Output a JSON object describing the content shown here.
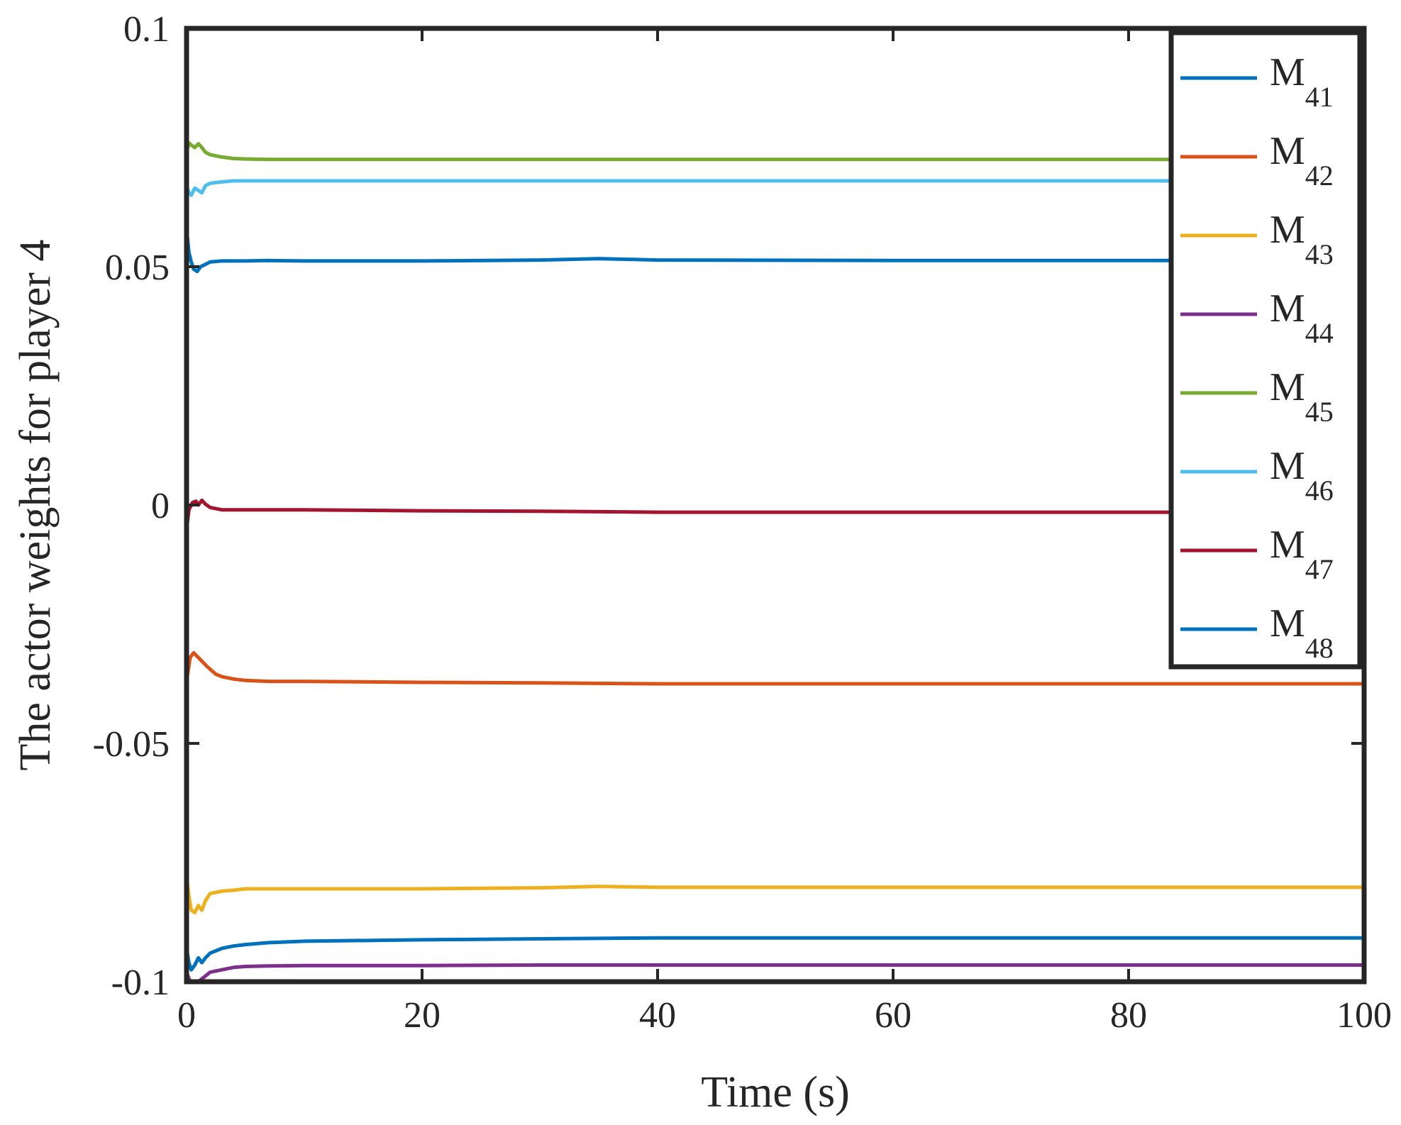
{
  "chart_data": {
    "type": "line",
    "title": "",
    "xlabel": "Time (s)",
    "ylabel": "The actor weights for player 4",
    "xlim": [
      0,
      100
    ],
    "ylim": [
      -0.1,
      0.1
    ],
    "xticks": [
      0,
      20,
      40,
      60,
      80,
      100
    ],
    "xtick_labels": [
      "0",
      "20",
      "40",
      "60",
      "80",
      "100"
    ],
    "yticks": [
      -0.1,
      -0.05,
      0,
      0.05,
      0.1
    ],
    "ytick_labels": [
      "-0.1",
      "-0.05",
      "0",
      "0.05",
      "0.1"
    ],
    "grid": false,
    "legend_position": "top-right",
    "series": [
      {
        "name": "M41",
        "base": "M",
        "sub": "41",
        "color": "#0072BD",
        "x": [
          0,
          0.2,
          0.4,
          0.6,
          0.9,
          1.2,
          1.6,
          2,
          3,
          4,
          5,
          7,
          10,
          20,
          30,
          35,
          40,
          60,
          80,
          100
        ],
        "values": [
          0.058,
          0.053,
          0.051,
          0.0495,
          0.049,
          0.05,
          0.0505,
          0.051,
          0.0512,
          0.0512,
          0.0512,
          0.0513,
          0.0512,
          0.0512,
          0.0514,
          0.0517,
          0.0514,
          0.0513,
          0.0513,
          0.0513
        ]
      },
      {
        "name": "M42",
        "base": "M",
        "sub": "42",
        "color": "#D95319",
        "x": [
          0,
          0.3,
          0.6,
          1,
          1.4,
          1.8,
          2.5,
          3,
          4,
          5,
          7,
          10,
          20,
          30,
          40,
          60,
          80,
          100
        ],
        "values": [
          -0.037,
          -0.032,
          -0.031,
          -0.032,
          -0.033,
          -0.034,
          -0.0355,
          -0.036,
          -0.0365,
          -0.0368,
          -0.037,
          -0.037,
          -0.0372,
          -0.0373,
          -0.0375,
          -0.0375,
          -0.0375,
          -0.0375
        ]
      },
      {
        "name": "M43",
        "base": "M",
        "sub": "43",
        "color": "#EDB120",
        "x": [
          0,
          0.2,
          0.4,
          0.7,
          1,
          1.3,
          1.6,
          2,
          3,
          4,
          5,
          7,
          10,
          20,
          30,
          35,
          40,
          60,
          80,
          100
        ],
        "values": [
          -0.078,
          -0.082,
          -0.085,
          -0.0855,
          -0.084,
          -0.085,
          -0.083,
          -0.0815,
          -0.081,
          -0.0808,
          -0.0805,
          -0.0805,
          -0.0805,
          -0.0805,
          -0.0803,
          -0.08,
          -0.0802,
          -0.0802,
          -0.0802,
          -0.0802
        ]
      },
      {
        "name": "M44",
        "base": "M",
        "sub": "44",
        "color": "#7E2F8E",
        "x": [
          0,
          0.3,
          0.6,
          1,
          1.5,
          2,
          3,
          4,
          5,
          7,
          10,
          20,
          30,
          40,
          60,
          80,
          100
        ],
        "values": [
          -0.098,
          -0.1,
          -0.1,
          -0.1,
          -0.099,
          -0.098,
          -0.0975,
          -0.097,
          -0.0968,
          -0.0967,
          -0.0966,
          -0.0966,
          -0.0965,
          -0.0965,
          -0.0965,
          -0.0965,
          -0.0965
        ]
      },
      {
        "name": "M45",
        "base": "M",
        "sub": "45",
        "color": "#77AC30",
        "x": [
          0,
          0.2,
          0.4,
          0.7,
          1,
          1.3,
          1.6,
          2,
          3,
          4,
          5,
          7,
          10,
          20,
          30,
          40,
          60,
          80,
          100
        ],
        "values": [
          0.074,
          0.076,
          0.0755,
          0.075,
          0.0758,
          0.075,
          0.074,
          0.0735,
          0.073,
          0.0727,
          0.0726,
          0.0725,
          0.0725,
          0.0725,
          0.0725,
          0.0725,
          0.0725,
          0.0725,
          0.0725
        ]
      },
      {
        "name": "M46",
        "base": "M",
        "sub": "46",
        "color": "#4DBEEE",
        "x": [
          0,
          0.2,
          0.4,
          0.7,
          1,
          1.3,
          1.6,
          2,
          3,
          4,
          5,
          7,
          10,
          20,
          30,
          40,
          60,
          80,
          100
        ],
        "values": [
          0.067,
          0.0655,
          0.065,
          0.0665,
          0.066,
          0.0655,
          0.067,
          0.0675,
          0.0678,
          0.068,
          0.068,
          0.068,
          0.068,
          0.068,
          0.068,
          0.068,
          0.068,
          0.068,
          0.068
        ]
      },
      {
        "name": "M47",
        "base": "M",
        "sub": "47",
        "color": "#A2142F",
        "x": [
          0,
          0.2,
          0.5,
          0.8,
          1,
          1.3,
          1.6,
          2,
          3,
          4,
          5,
          7,
          10,
          20,
          30,
          40,
          60,
          80,
          100
        ],
        "values": [
          -0.005,
          -0.001,
          0.0005,
          0.0008,
          0,
          0.001,
          0.0002,
          -0.0005,
          -0.001,
          -0.001,
          -0.001,
          -0.001,
          -0.001,
          -0.0012,
          -0.0013,
          -0.0015,
          -0.0015,
          -0.0015,
          -0.0015
        ]
      },
      {
        "name": "M48",
        "base": "M",
        "sub": "48",
        "color": "#0072BD",
        "x": [
          0,
          0.2,
          0.4,
          0.7,
          1,
          1.3,
          1.6,
          2,
          3,
          4,
          5,
          7,
          10,
          20,
          30,
          40,
          60,
          80,
          100
        ],
        "values": [
          -0.093,
          -0.096,
          -0.0975,
          -0.0965,
          -0.095,
          -0.096,
          -0.095,
          -0.094,
          -0.093,
          -0.0925,
          -0.0922,
          -0.0918,
          -0.0915,
          -0.0912,
          -0.091,
          -0.0908,
          -0.0908,
          -0.0908,
          -0.0908
        ]
      }
    ]
  }
}
